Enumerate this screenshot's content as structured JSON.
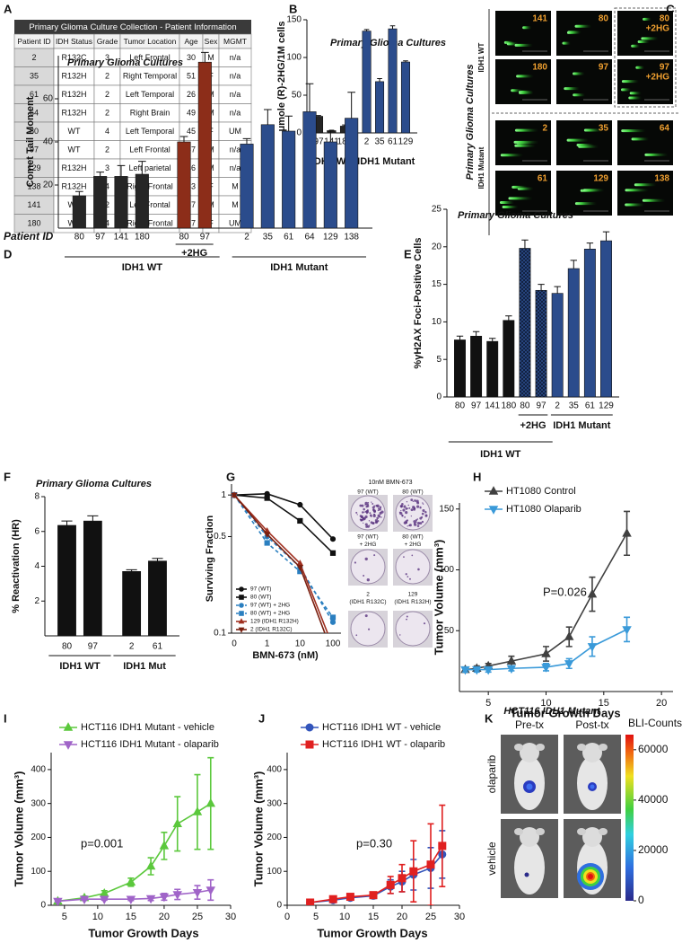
{
  "table": {
    "panel": "A",
    "title": "Primary Glioma Culture Collection - Patient Information",
    "header": [
      "Patient ID",
      "IDH Status",
      "Grade",
      "Tumor Location",
      "Age",
      "Sex",
      "MGMT"
    ],
    "rows": [
      [
        2,
        "R132C",
        3,
        "Left Frontal",
        30,
        "M",
        "n/a"
      ],
      [
        35,
        "R132H",
        2,
        "Right Temporal",
        51,
        "F",
        "n/a"
      ],
      [
        61,
        "R132H",
        2,
        "Left Temporal",
        26,
        "M",
        "n/a"
      ],
      [
        64,
        "R132H",
        2,
        "Right Brain",
        49,
        "M",
        "n/a"
      ],
      [
        80,
        "WT",
        4,
        "Left Temporal",
        45,
        "F",
        "UM"
      ],
      [
        97,
        "WT",
        2,
        "Left Frontal",
        57,
        "M",
        "n/a"
      ],
      [
        129,
        "R132H",
        3,
        "Left parietal",
        46,
        "M",
        "n/a"
      ],
      [
        138,
        "R132H",
        4,
        "Right Frontal",
        33,
        "F",
        "M"
      ],
      [
        141,
        "WT",
        2,
        "Left Frontal",
        57,
        "M",
        "M"
      ],
      [
        180,
        "WT",
        4,
        "Right Frontal",
        17,
        "F",
        "UM"
      ]
    ]
  },
  "comet_images": {
    "panel": "C",
    "title": "Primary Glioma Cultures",
    "rows": [
      {
        "label": "IDH1 WT",
        "images": [
          [
            "141"
          ],
          [
            "80"
          ],
          [
            "80",
            "+2HG"
          ],
          [
            "180"
          ],
          [
            "97"
          ],
          [
            "97",
            "+2HG"
          ]
        ]
      },
      {
        "label": "IDH1 Mutant",
        "images": [
          [
            "2"
          ],
          [
            "35"
          ],
          [
            "64"
          ],
          [
            "61"
          ],
          [
            "129"
          ],
          [
            "138"
          ]
        ]
      }
    ]
  },
  "chart_data": [
    {
      "panel": "B",
      "type": "bar",
      "title": "Primary Glioma Cultures",
      "ylabel": "μmole (R)-2HG/1M cells",
      "ylim": [
        0,
        150
      ],
      "yticks": [
        0,
        50,
        100,
        150
      ],
      "groups": [
        {
          "name": "IDH1 WT",
          "subgroups": [
            {
              "color": "#262626",
              "categories": [
                "97",
                "141",
                "180"
              ],
              "values": [
                22,
                3,
                9
              ],
              "errors": [
                1,
                0.5,
                1.5
              ]
            }
          ]
        },
        {
          "name": "IDH1 Mutant",
          "subgroups": [
            {
              "color": "#2b4c8c",
              "categories": [
                "2",
                "35",
                "61",
                "129"
              ],
              "values": [
                135,
                68,
                138,
                94
              ],
              "errors": [
                2,
                4,
                4,
                1.5
              ]
            }
          ]
        }
      ]
    },
    {
      "panel": "D",
      "type": "bar",
      "title": "Primary Glioma Cultures",
      "ylabel": "Comet Tail Moment",
      "xlabel": "Patient ID",
      "ylim": [
        0,
        80
      ],
      "yticks": [
        20,
        40,
        60
      ],
      "groups": [
        {
          "name": "IDH1 WT",
          "subgroups": [
            {
              "color": "#262626",
              "categories": [
                "80",
                "97",
                "141",
                "180"
              ],
              "values": [
                15,
                24,
                24,
                25
              ],
              "errors": [
                2,
                2,
                5,
                6
              ]
            },
            {
              "name": "+2HG",
              "color": "#8c2d19",
              "categories": [
                "80",
                "97"
              ],
              "values": [
                40,
                77
              ],
              "errors": [
                2.5,
                4.5
              ]
            }
          ]
        },
        {
          "name": "IDH1 Mutant",
          "subgroups": [
            {
              "color": "#2b4c8c",
              "categories": [
                "2",
                "35",
                "61",
                "64",
                "129",
                "138"
              ],
              "values": [
                39,
                48,
                45,
                54,
                40,
                51
              ],
              "errors": [
                2.5,
                7,
                7,
                13,
                5,
                12
              ]
            }
          ]
        }
      ]
    },
    {
      "panel": "E",
      "type": "bar",
      "title": "Primary Glioma Cultures",
      "ylabel": "%γH2AX Foci-Positive Cells",
      "ylim": [
        0,
        25
      ],
      "yticks": [
        0,
        5,
        10,
        15,
        20,
        25
      ],
      "groups": [
        {
          "name": "IDH1 WT",
          "subgroups": [
            {
              "color": "#111111",
              "categories": [
                "80",
                "97",
                "141",
                "180"
              ],
              "values": [
                7.6,
                8.1,
                7.4,
                10.2
              ],
              "errors": [
                0.5,
                0.6,
                0.4,
                0.6
              ]
            },
            {
              "name": "+2HG",
              "color": "#2b4c8c",
              "hatch": true,
              "categories": [
                "80",
                "97"
              ],
              "values": [
                19.8,
                14.2
              ],
              "errors": [
                1.1,
                0.8
              ]
            }
          ]
        },
        {
          "subgroups": [
            {
              "name": "IDH1 Mutant",
              "color": "#2b4c8c",
              "categories": [
                "2",
                "35",
                "61",
                "129"
              ],
              "values": [
                13.8,
                17.1,
                19.7,
                20.8
              ],
              "errors": [
                0.9,
                1.1,
                0.8,
                1.2
              ]
            }
          ]
        }
      ]
    },
    {
      "panel": "F",
      "type": "bar",
      "title": "Primary Glioma Cultures",
      "ylabel": "% Reactivation (HR)",
      "ylim": [
        0,
        8
      ],
      "yticks": [
        2,
        4,
        6,
        8
      ],
      "groups": [
        {
          "name": "IDH1 WT",
          "subgroups": [
            {
              "color": "#111111",
              "categories": [
                "80",
                "97"
              ],
              "values": [
                6.35,
                6.6
              ],
              "errors": [
                0.25,
                0.3
              ]
            }
          ]
        },
        {
          "name": "IDH1 Mut",
          "subgroups": [
            {
              "color": "#111111",
              "categories": [
                "2",
                "61"
              ],
              "values": [
                3.7,
                4.3
              ],
              "errors": [
                0.1,
                0.15
              ]
            }
          ]
        }
      ]
    },
    {
      "panel": "G",
      "type": "line",
      "xlabel": "BMN-673 (nM)",
      "ylabel": "Surviving Fraction",
      "categories": [
        "0",
        "1",
        "10",
        "100"
      ],
      "ylog": true,
      "ylim": [
        0.1,
        1.2
      ],
      "yticks": [
        0.1,
        0.5,
        1
      ],
      "series": [
        {
          "name": "97 (WT)",
          "color": "#111111",
          "marker": "circle",
          "values": [
            1,
            1.02,
            0.85,
            0.48
          ]
        },
        {
          "name": "80 (WT)",
          "color": "#111111",
          "marker": "square",
          "values": [
            1,
            0.95,
            0.65,
            0.38
          ]
        },
        {
          "name": "97 (WT) + 2HG",
          "color": "#2a7fc0",
          "marker": "circle",
          "dashed": true,
          "values": [
            1,
            0.5,
            0.3,
            0.12
          ]
        },
        {
          "name": "80 (WT) + 2HG",
          "color": "#2a7fc0",
          "marker": "square",
          "dashed": true,
          "values": [
            1,
            0.45,
            0.28,
            0.13
          ]
        },
        {
          "name": "129 (IDH1 R132H)",
          "color": "#a03020",
          "marker": "triangle-up",
          "values": [
            1,
            0.55,
            0.32,
            0.08
          ]
        },
        {
          "name": "2 (IDH1 R132C)",
          "color": "#7a2010",
          "marker": "triangle-down",
          "values": [
            1,
            0.52,
            0.3,
            0.07
          ]
        }
      ]
    },
    {
      "panel": "H",
      "type": "line",
      "xlabel": "Tumor Growth Days",
      "ylabel": "Tumor Volume (mm³)",
      "annotation": "P=0.026",
      "xlim": [
        2.5,
        21
      ],
      "xticks": [
        5,
        10,
        15,
        20
      ],
      "ylim": [
        0,
        155
      ],
      "yticks": [
        50,
        100,
        150
      ],
      "series": [
        {
          "name": "HT1080 Control",
          "color": "#404040",
          "marker": "triangle-up",
          "x": [
            3,
            4,
            5,
            7,
            10,
            12,
            14,
            17
          ],
          "values": [
            18,
            19,
            21,
            25,
            31,
            45,
            80,
            130
          ],
          "errors": [
            2,
            2,
            2,
            4,
            6,
            8,
            14,
            18
          ]
        },
        {
          "name": "HT1080 Olaparib",
          "color": "#3a9ad9",
          "marker": "triangle-down",
          "x": [
            3,
            4,
            5,
            7,
            10,
            12,
            14,
            17
          ],
          "values": [
            18,
            18,
            18,
            19,
            20,
            23,
            37,
            51
          ],
          "errors": [
            2,
            2,
            2,
            2,
            3,
            4,
            8,
            10
          ]
        }
      ]
    },
    {
      "panel": "I",
      "type": "line",
      "xlabel": "Tumor Growth Days",
      "ylabel": "Tumor Volume (mm³)",
      "annotation": "p=0.001",
      "xlim": [
        3,
        30
      ],
      "xticks": [
        5,
        10,
        15,
        20,
        25,
        30
      ],
      "ylim": [
        0,
        450
      ],
      "yticks": [
        0,
        100,
        200,
        300,
        400
      ],
      "series": [
        {
          "name": "HCT116 IDH1 Mutant - vehicle",
          "color": "#5bc83c",
          "marker": "triangle-up",
          "x": [
            4,
            8,
            11,
            15,
            18,
            20,
            22,
            25,
            27
          ],
          "values": [
            12,
            22,
            35,
            68,
            115,
            175,
            240,
            275,
            300
          ],
          "errors": [
            3,
            5,
            8,
            12,
            25,
            40,
            80,
            110,
            135
          ]
        },
        {
          "name": "HCT116 IDH1 Mutant - olaparib",
          "color": "#a064c8",
          "marker": "triangle-down",
          "x": [
            4,
            8,
            11,
            15,
            18,
            20,
            22,
            25,
            27
          ],
          "values": [
            12,
            18,
            18,
            18,
            20,
            25,
            32,
            38,
            45
          ],
          "errors": [
            2,
            3,
            3,
            4,
            6,
            10,
            15,
            20,
            30
          ]
        }
      ]
    },
    {
      "panel": "J",
      "type": "line",
      "xlabel": "Tumor Growth Days",
      "ylabel": "Tumor Volume (mm³)",
      "annotation": "p=0.30",
      "xlim": [
        0,
        30
      ],
      "xticks": [
        0,
        5,
        10,
        15,
        20,
        25,
        30
      ],
      "ylim": [
        0,
        450
      ],
      "yticks": [
        0,
        100,
        200,
        300,
        400
      ],
      "series": [
        {
          "name": "HCT116 IDH1 WT - vehicle",
          "color": "#3355bb",
          "marker": "circle",
          "x": [
            4,
            8,
            11,
            15,
            18,
            20,
            22,
            25,
            27
          ],
          "values": [
            8,
            15,
            22,
            28,
            55,
            70,
            90,
            110,
            150
          ],
          "errors": [
            3,
            5,
            6,
            8,
            20,
            30,
            45,
            60,
            70
          ]
        },
        {
          "name": "HCT116 IDH1 WT - olaparib",
          "color": "#e02020",
          "marker": "square",
          "x": [
            4,
            8,
            11,
            15,
            18,
            20,
            22,
            25,
            27
          ],
          "values": [
            8,
            18,
            25,
            30,
            60,
            80,
            100,
            120,
            175
          ],
          "errors": [
            3,
            5,
            6,
            8,
            25,
            40,
            90,
            120,
            120
          ]
        }
      ]
    }
  ],
  "colony_images": {
    "title": "10nM BMN-673",
    "plates": [
      [
        "97 (WT)"
      ],
      [
        "80 (WT)"
      ],
      [
        "97 (WT)",
        "+ 2HG"
      ],
      [
        "80 (WT)",
        "+ 2HG"
      ],
      [
        "2",
        "(IDH1 R132C)"
      ],
      [
        "129",
        "(IDH1 R132H)"
      ]
    ]
  },
  "bli_images": {
    "panel": "K",
    "title": "HCT116 IDH1 Mutant",
    "columns": [
      "Pre-tx",
      "Post-tx"
    ],
    "rows": [
      "olaparib",
      "vehicle"
    ],
    "colorbar": {
      "label": "BLI-Counts",
      "lim": [
        0,
        66000
      ],
      "ticks": [
        0,
        20000,
        40000,
        60000
      ]
    }
  }
}
